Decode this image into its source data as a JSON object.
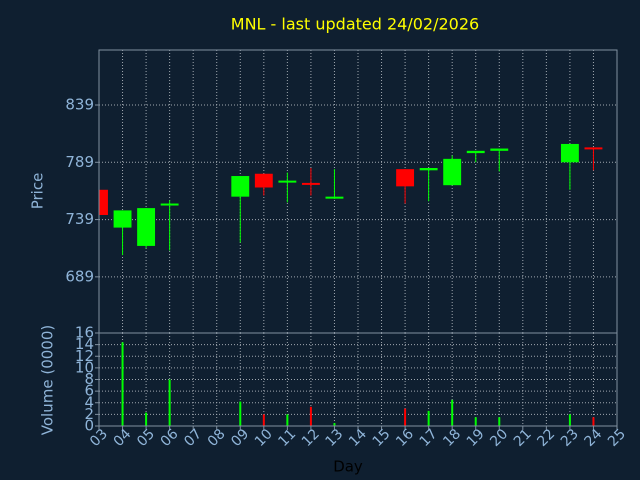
{
  "chart_data": [
    {
      "type": "candlestick",
      "title": "MNL - last updated 24/02/2026",
      "ylabel": "Price",
      "x": [
        3,
        4,
        5,
        6,
        9,
        10,
        11,
        12,
        13,
        16,
        17,
        18,
        19,
        20,
        23,
        24
      ],
      "open": [
        765,
        732,
        716,
        752,
        759,
        779,
        772,
        771,
        758,
        783,
        782,
        769,
        797,
        799,
        789,
        802
      ],
      "high": [
        765,
        747,
        749,
        756,
        777,
        779,
        780,
        784,
        783,
        783,
        784,
        795,
        799,
        801,
        805,
        802
      ],
      "low": [
        743,
        708,
        714,
        712,
        719,
        760,
        754,
        760,
        757,
        753,
        755,
        769,
        789,
        781,
        765,
        782
      ],
      "close": [
        743,
        747,
        749,
        753,
        777,
        767,
        773,
        770,
        759,
        768,
        784,
        792,
        799,
        801,
        805,
        801
      ],
      "up_color": "#00ff00",
      "down_color": "#ff0000",
      "xlim": [
        3,
        25
      ],
      "xticks": [
        3,
        4,
        5,
        6,
        7,
        8,
        9,
        10,
        11,
        12,
        13,
        14,
        15,
        16,
        17,
        18,
        19,
        20,
        21,
        22,
        23,
        24,
        25
      ],
      "ylim": [
        640,
        887
      ],
      "yticks": [
        689,
        739,
        789,
        839
      ],
      "grid": true
    },
    {
      "type": "bar",
      "ylabel": "Volume (0000)",
      "xlabel": "Day",
      "x": [
        3,
        4,
        5,
        6,
        9,
        10,
        11,
        12,
        13,
        16,
        17,
        18,
        19,
        20,
        23,
        24
      ],
      "values": [
        0,
        14.4,
        2.3,
        8,
        4.2,
        2,
        2,
        3.3,
        0.5,
        3,
        2.6,
        4.5,
        1.5,
        1.5,
        2,
        1.5
      ],
      "xlim": [
        3,
        25
      ],
      "xticks": [
        {
          "value": 3,
          "label": "03"
        },
        {
          "value": 4,
          "label": "04"
        },
        {
          "value": 5,
          "label": "05"
        },
        {
          "value": 6,
          "label": "06"
        },
        {
          "value": 7,
          "label": "07"
        },
        {
          "value": 8,
          "label": "08"
        },
        {
          "value": 9,
          "label": "09"
        },
        10,
        11,
        12,
        13,
        14,
        15,
        16,
        17,
        18,
        19,
        20,
        21,
        22,
        23,
        24,
        25
      ],
      "ylim": [
        0,
        16
      ],
      "yticks": [
        0,
        2,
        4,
        6,
        8,
        10,
        12,
        14,
        16
      ],
      "grid": true
    }
  ]
}
